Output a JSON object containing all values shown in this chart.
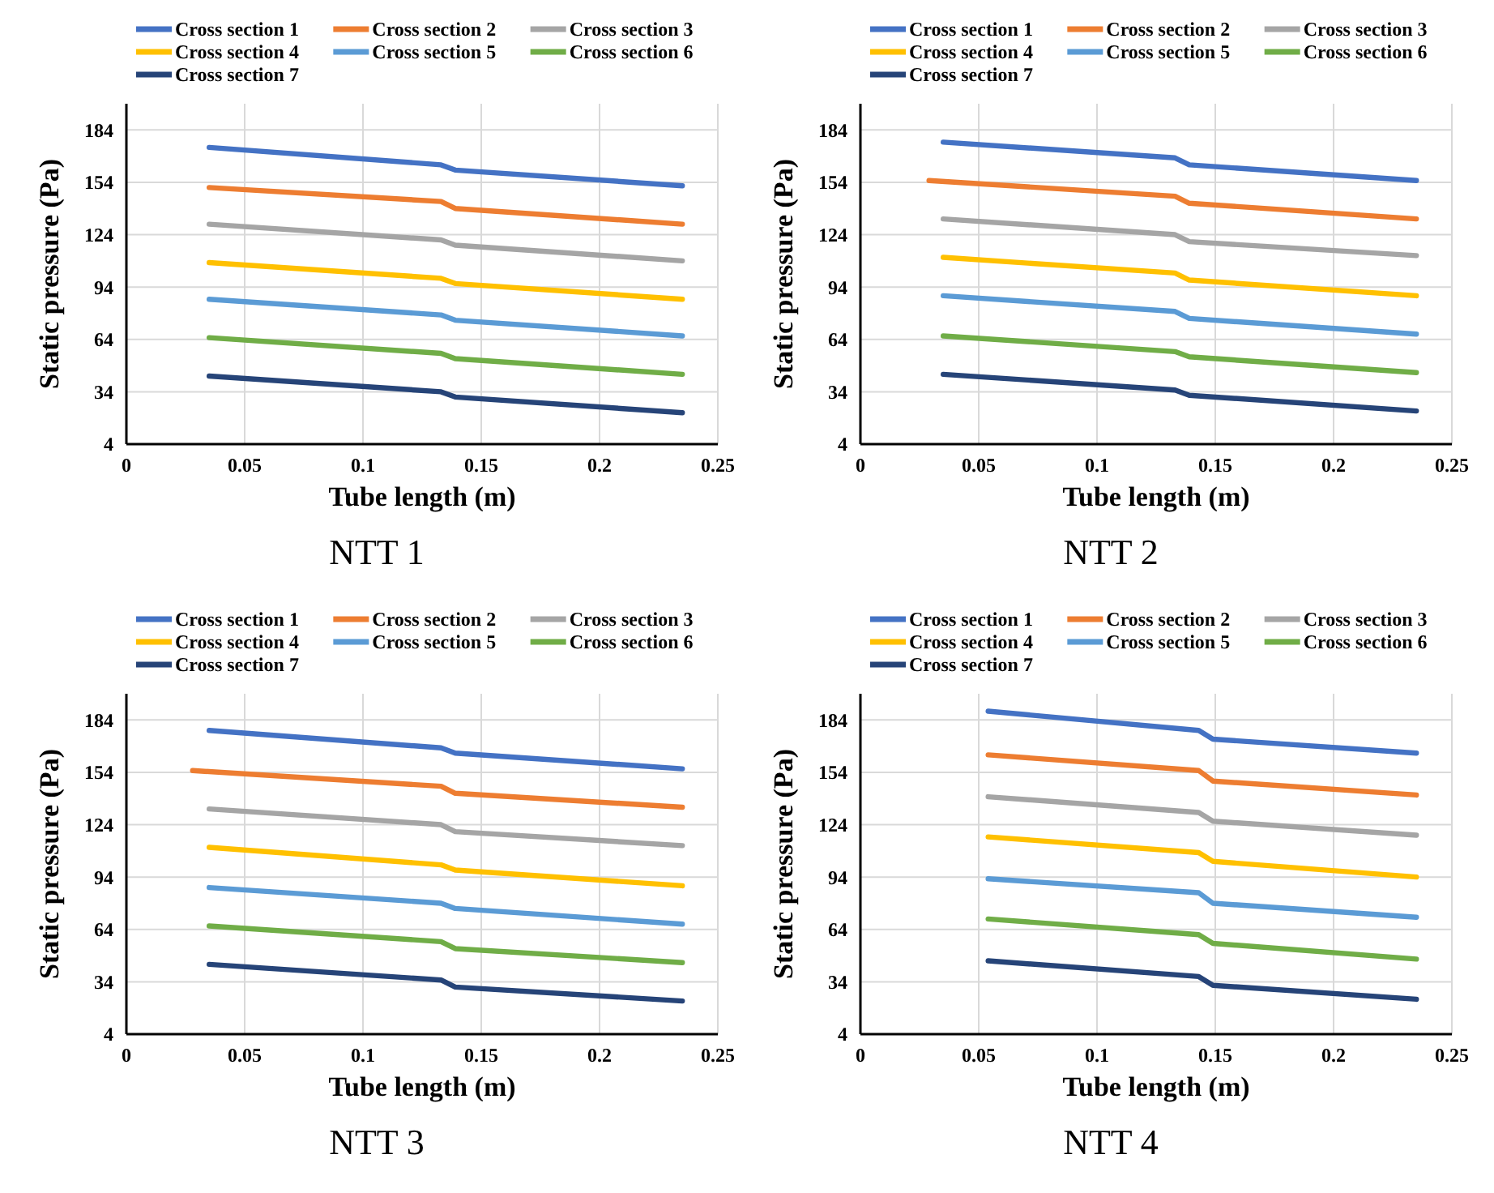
{
  "chart_data": [
    {
      "type": "line",
      "title": "NTT 1",
      "xlabel": "Tube length (m)",
      "ylabel": "Static pressure (Pa)",
      "xlim": [
        0,
        0.25
      ],
      "xticks": [
        0,
        0.05,
        0.1,
        0.15,
        0.2,
        0.25
      ],
      "ylim": [
        4,
        199
      ],
      "yticks": [
        4,
        34,
        64,
        94,
        124,
        154,
        184
      ],
      "grid": true,
      "legend": "top",
      "marker": "none",
      "line_style": "solid",
      "x": [
        0.035,
        0.133,
        0.139,
        0.235
      ],
      "series": [
        {
          "name": "Cross section 1",
          "color": "#4472c4",
          "values": [
            174,
            164,
            161,
            152
          ]
        },
        {
          "name": "Cross section 2",
          "color": "#ed7d31",
          "values": [
            151,
            143,
            139,
            130
          ]
        },
        {
          "name": "Cross section 3",
          "color": "#a5a5a5",
          "values": [
            130,
            121,
            118,
            109
          ]
        },
        {
          "name": "Cross section 4",
          "color": "#ffc000",
          "values": [
            108,
            99,
            96,
            87
          ]
        },
        {
          "name": "Cross section 5",
          "color": "#5b9bd5",
          "values": [
            87,
            78,
            75,
            66
          ]
        },
        {
          "name": "Cross section 6",
          "color": "#70ad47",
          "values": [
            65,
            56,
            53,
            44
          ]
        },
        {
          "name": "Cross section 7",
          "color": "#264478",
          "values": [
            43,
            34,
            31,
            22
          ]
        }
      ]
    },
    {
      "type": "line",
      "title": "NTT 2",
      "xlabel": "Tube length (m)",
      "ylabel": "Static pressure (Pa)",
      "xlim": [
        0,
        0.25
      ],
      "xticks": [
        0,
        0.05,
        0.1,
        0.15,
        0.2,
        0.25
      ],
      "ylim": [
        4,
        199
      ],
      "yticks": [
        4,
        34,
        64,
        94,
        124,
        154,
        184
      ],
      "grid": true,
      "legend": "top",
      "marker": "none",
      "line_style": "solid",
      "x": [
        0.035,
        0.133,
        0.139,
        0.235
      ],
      "series": [
        {
          "name": "Cross section 1",
          "color": "#4472c4",
          "values": [
            177,
            168,
            164,
            155
          ]
        },
        {
          "name": "Cross section 2",
          "color": "#ed7d31",
          "x": [
            0.029,
            0.133,
            0.139,
            0.235
          ],
          "values": [
            155,
            146,
            142,
            133
          ]
        },
        {
          "name": "Cross section 3",
          "color": "#a5a5a5",
          "values": [
            133,
            124,
            120,
            112
          ]
        },
        {
          "name": "Cross section 4",
          "color": "#ffc000",
          "values": [
            111,
            102,
            98,
            89
          ]
        },
        {
          "name": "Cross section 5",
          "color": "#5b9bd5",
          "values": [
            89,
            80,
            76,
            67
          ]
        },
        {
          "name": "Cross section 6",
          "color": "#70ad47",
          "values": [
            66,
            57,
            54,
            45
          ]
        },
        {
          "name": "Cross section 7",
          "color": "#264478",
          "values": [
            44,
            35,
            32,
            23
          ]
        }
      ]
    },
    {
      "type": "line",
      "title": "NTT 3",
      "xlabel": "Tube length (m)",
      "ylabel": "Static pressure (Pa)",
      "xlim": [
        0,
        0.25
      ],
      "xticks": [
        0,
        0.05,
        0.1,
        0.15,
        0.2,
        0.25
      ],
      "ylim": [
        4,
        199
      ],
      "yticks": [
        4,
        34,
        64,
        94,
        124,
        154,
        184
      ],
      "grid": true,
      "legend": "top",
      "marker": "none",
      "line_style": "solid",
      "x": [
        0.035,
        0.133,
        0.139,
        0.235
      ],
      "series": [
        {
          "name": "Cross section 1",
          "color": "#4472c4",
          "values": [
            178,
            168,
            165,
            156
          ]
        },
        {
          "name": "Cross section 2",
          "color": "#ed7d31",
          "x": [
            0.028,
            0.133,
            0.139,
            0.235
          ],
          "values": [
            155,
            146,
            142,
            134
          ]
        },
        {
          "name": "Cross section 3",
          "color": "#a5a5a5",
          "values": [
            133,
            124,
            120,
            112
          ]
        },
        {
          "name": "Cross section 4",
          "color": "#ffc000",
          "values": [
            111,
            101,
            98,
            89
          ]
        },
        {
          "name": "Cross section 5",
          "color": "#5b9bd5",
          "values": [
            88,
            79,
            76,
            67
          ]
        },
        {
          "name": "Cross section 6",
          "color": "#70ad47",
          "values": [
            66,
            57,
            53,
            45
          ]
        },
        {
          "name": "Cross section 7",
          "color": "#264478",
          "values": [
            44,
            35,
            31,
            23
          ]
        }
      ]
    },
    {
      "type": "line",
      "title": "NTT 4",
      "xlabel": "Tube length (m)",
      "ylabel": "Static pressure (Pa)",
      "xlim": [
        0,
        0.25
      ],
      "xticks": [
        0,
        0.05,
        0.1,
        0.15,
        0.2,
        0.25
      ],
      "ylim": [
        4,
        199
      ],
      "yticks": [
        4,
        34,
        64,
        94,
        124,
        154,
        184
      ],
      "grid": true,
      "legend": "top",
      "marker": "none",
      "line_style": "solid",
      "x": [
        0.054,
        0.143,
        0.149,
        0.235
      ],
      "series": [
        {
          "name": "Cross section 1",
          "color": "#4472c4",
          "values": [
            189,
            178,
            173,
            165
          ]
        },
        {
          "name": "Cross section 2",
          "color": "#ed7d31",
          "values": [
            164,
            155,
            149,
            141
          ]
        },
        {
          "name": "Cross section 3",
          "color": "#a5a5a5",
          "values": [
            140,
            131,
            126,
            118
          ]
        },
        {
          "name": "Cross section 4",
          "color": "#ffc000",
          "values": [
            117,
            108,
            103,
            94
          ]
        },
        {
          "name": "Cross section 5",
          "color": "#5b9bd5",
          "values": [
            93,
            85,
            79,
            71
          ]
        },
        {
          "name": "Cross section 6",
          "color": "#70ad47",
          "values": [
            70,
            61,
            56,
            47
          ]
        },
        {
          "name": "Cross section 7",
          "color": "#264478",
          "values": [
            46,
            37,
            32,
            24
          ]
        }
      ]
    }
  ]
}
